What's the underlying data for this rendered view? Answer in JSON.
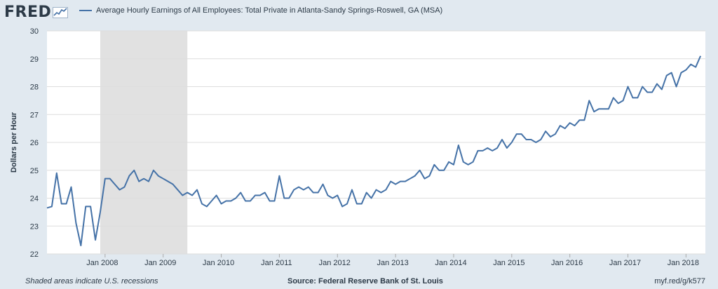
{
  "header": {
    "logo_text": "FRED",
    "logo_icon": "chart-line-icon",
    "series_title": "Average Hourly Earnings of All Employees: Total Private in Atlanta-Sandy Springs-Roswell, GA (MSA)"
  },
  "footer": {
    "recession_note": "Shaded areas indicate U.S. recessions",
    "source": "Source: Federal Reserve Bank of St. Louis",
    "short_url": "myf.red/g/k577"
  },
  "colors": {
    "background": "#e1e9f0",
    "plot_bg": "#ffffff",
    "line": "#4572a7",
    "recession": "#e1e1e1",
    "grid": "#dddddd",
    "text": "#2c3a47"
  },
  "chart_data": {
    "type": "line",
    "title": "Average Hourly Earnings of All Employees: Total Private in Atlanta-Sandy Springs-Roswell, GA (MSA)",
    "xlabel": "",
    "ylabel": "Dollars per Hour",
    "ylim": [
      22,
      30
    ],
    "yticks": [
      22,
      23,
      24,
      25,
      26,
      27,
      28,
      29,
      30
    ],
    "xlim": [
      "2007-01",
      "2018-05"
    ],
    "xticks": [
      "Jan 2008",
      "Jan 2009",
      "Jan 2010",
      "Jan 2011",
      "Jan 2012",
      "Jan 2013",
      "Jan 2014",
      "Jan 2015",
      "Jan 2016",
      "Jan 2017",
      "Jan 2018"
    ],
    "grid": "horizontal",
    "recessions": [
      {
        "start": "2007-12",
        "end": "2009-06"
      }
    ],
    "series": [
      {
        "start": "2007-01",
        "frequency": "monthly",
        "values": [
          23.65,
          23.7,
          24.9,
          23.8,
          23.8,
          24.4,
          23.1,
          22.3,
          23.7,
          23.7,
          22.5,
          23.5,
          24.7,
          24.7,
          24.5,
          24.3,
          24.4,
          24.8,
          25.0,
          24.6,
          24.7,
          24.6,
          25.0,
          24.8,
          24.7,
          24.6,
          24.5,
          24.3,
          24.1,
          24.2,
          24.1,
          24.3,
          23.8,
          23.7,
          23.9,
          24.1,
          23.8,
          23.9,
          23.9,
          24.0,
          24.2,
          23.9,
          23.9,
          24.1,
          24.1,
          24.2,
          23.9,
          23.9,
          24.8,
          24.0,
          24.0,
          24.3,
          24.4,
          24.3,
          24.4,
          24.2,
          24.2,
          24.5,
          24.1,
          24.0,
          24.1,
          23.7,
          23.8,
          24.3,
          23.8,
          23.8,
          24.2,
          24.0,
          24.3,
          24.2,
          24.3,
          24.6,
          24.5,
          24.6,
          24.6,
          24.7,
          24.8,
          25.0,
          24.7,
          24.8,
          25.2,
          25.0,
          25.0,
          25.3,
          25.2,
          25.9,
          25.3,
          25.2,
          25.3,
          25.7,
          25.7,
          25.8,
          25.7,
          25.8,
          26.1,
          25.8,
          26.0,
          26.3,
          26.3,
          26.1,
          26.1,
          26.0,
          26.1,
          26.4,
          26.2,
          26.3,
          26.6,
          26.5,
          26.7,
          26.6,
          26.8,
          26.8,
          27.5,
          27.1,
          27.2,
          27.2,
          27.2,
          27.6,
          27.4,
          27.5,
          28.0,
          27.6,
          27.6,
          28.0,
          27.8,
          27.8,
          28.1,
          27.9,
          28.4,
          28.5,
          28.0,
          28.5,
          28.6,
          28.8,
          28.7,
          29.1
        ]
      }
    ]
  }
}
